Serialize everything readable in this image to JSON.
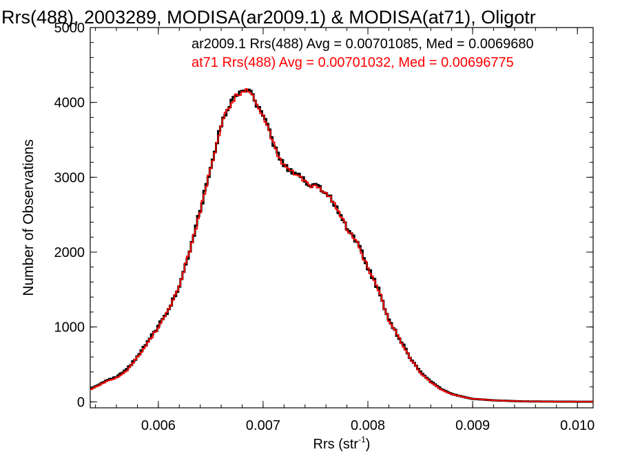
{
  "chart_data": {
    "type": "line",
    "style": "step-histogram",
    "title": "Rrs(488), 2003289, MODISA(ar2009.1) & MODISA(at71), Oligotr",
    "xlabel": "Rrs (str",
    "xlabel_sup": "-1",
    "xlabel_close": ")",
    "ylabel": "Number of Observations",
    "xlim": [
      0.00535,
      0.01015
    ],
    "ylim": [
      -80,
      5000
    ],
    "xticks": [
      0.006,
      0.007,
      0.008,
      0.009,
      0.01
    ],
    "xtick_labels": [
      "0.006",
      "0.007",
      "0.008",
      "0.009",
      "0.010"
    ],
    "yticks": [
      0,
      1000,
      2000,
      3000,
      4000,
      5000
    ],
    "ytick_labels": [
      "0",
      "1000",
      "2000",
      "3000",
      "4000",
      "5000"
    ],
    "grid": false,
    "legend_position": "top-right",
    "colors": {
      "ar2009": "#000000",
      "at71": "#ff0000"
    },
    "stats": [
      {
        "label": "ar2009.1 Rrs(488) Avg = 0.00701085, Med = 0.0069680",
        "color": "#000000"
      },
      {
        "label": "at71 Rrs(488) Avg = 0.00701032, Med = 0.00696775",
        "color": "#ff0000"
      }
    ],
    "series": [
      {
        "name": "ar2009.1",
        "color": "#000000",
        "x": [
          0.00535,
          0.0055,
          0.0056,
          0.0057,
          0.0058,
          0.0059,
          0.006,
          0.0061,
          0.0062,
          0.0063,
          0.0064,
          0.0065,
          0.0066,
          0.00665,
          0.0067,
          0.00675,
          0.0068,
          0.00685,
          0.0069,
          0.00695,
          0.007,
          0.00705,
          0.0071,
          0.00715,
          0.0072,
          0.00725,
          0.0073,
          0.00735,
          0.0074,
          0.00745,
          0.0075,
          0.00755,
          0.0076,
          0.00765,
          0.0077,
          0.00775,
          0.0078,
          0.00785,
          0.0079,
          0.008,
          0.0081,
          0.0082,
          0.0083,
          0.0084,
          0.0085,
          0.0086,
          0.0087,
          0.0088,
          0.0089,
          0.009,
          0.0091,
          0.0092,
          0.0093,
          0.0094,
          0.0095,
          0.0096,
          0.0097,
          0.0098,
          0.0099,
          0.01,
          0.01015
        ],
        "y": [
          170,
          280,
          330,
          430,
          600,
          800,
          1010,
          1230,
          1560,
          2030,
          2560,
          3140,
          3700,
          3890,
          4010,
          4120,
          4140,
          4180,
          4090,
          3930,
          3820,
          3650,
          3450,
          3270,
          3170,
          3090,
          3070,
          3030,
          2950,
          2880,
          2910,
          2850,
          2780,
          2720,
          2590,
          2470,
          2320,
          2250,
          2120,
          1800,
          1500,
          1100,
          850,
          600,
          400,
          270,
          170,
          105,
          70,
          40,
          30,
          20,
          15,
          10,
          6,
          5,
          4,
          3,
          3,
          2,
          2
        ]
      },
      {
        "name": "at71",
        "color": "#ff0000",
        "x": [
          0.00535,
          0.0055,
          0.0056,
          0.0057,
          0.0058,
          0.0059,
          0.006,
          0.0061,
          0.0062,
          0.0063,
          0.0064,
          0.0065,
          0.0066,
          0.00665,
          0.0067,
          0.00675,
          0.0068,
          0.00685,
          0.0069,
          0.00695,
          0.007,
          0.00705,
          0.0071,
          0.00715,
          0.0072,
          0.00725,
          0.0073,
          0.00735,
          0.0074,
          0.00745,
          0.0075,
          0.00755,
          0.0076,
          0.00765,
          0.0077,
          0.00775,
          0.0078,
          0.00785,
          0.0079,
          0.008,
          0.0081,
          0.0082,
          0.0083,
          0.0084,
          0.0085,
          0.0086,
          0.0087,
          0.0088,
          0.0089,
          0.009,
          0.0091,
          0.0092,
          0.0093,
          0.0094,
          0.0095,
          0.0096,
          0.0097,
          0.0098,
          0.0099,
          0.01,
          0.01015
        ],
        "y": [
          160,
          270,
          320,
          420,
          590,
          790,
          1000,
          1220,
          1550,
          2020,
          2550,
          3130,
          3690,
          3880,
          4000,
          4110,
          4130,
          4170,
          4080,
          3920,
          3810,
          3640,
          3440,
          3260,
          3160,
          3080,
          3060,
          3020,
          2940,
          2870,
          2900,
          2840,
          2770,
          2710,
          2580,
          2460,
          2310,
          2240,
          2110,
          1790,
          1490,
          1090,
          840,
          590,
          390,
          260,
          165,
          100,
          68,
          40,
          30,
          20,
          15,
          10,
          6,
          5,
          4,
          3,
          3,
          2,
          2
        ]
      }
    ]
  }
}
